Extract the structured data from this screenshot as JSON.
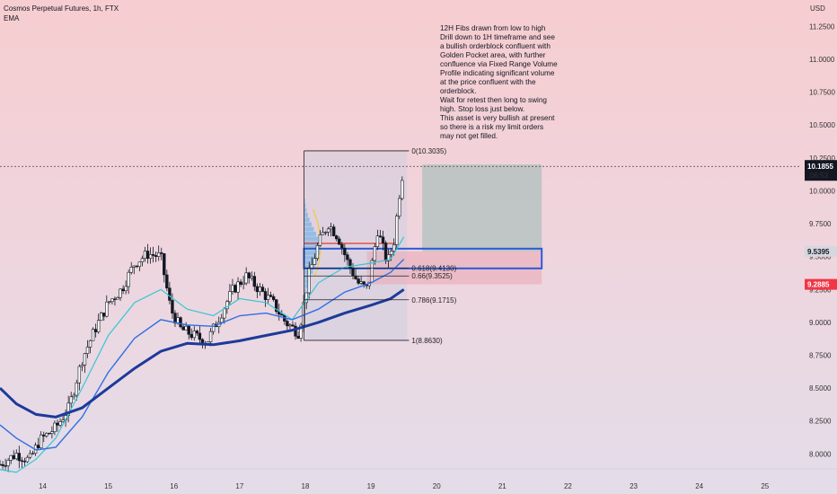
{
  "header": {
    "title": "Cosmos Perpetual Futures, 1h, FTX",
    "indicator": "EMA"
  },
  "note": "12H Fibs drawn from low to high\nDrill down to 1H timeframe and see\na bullish orderblock confluent with\nGolden Pocket area, with further\nconfluence via Fixed Range Volume\nProfile indicating significant volume\nat the price confluent with the\norderblock.\nWait for retest then long to swing\nhigh. Stop loss just below.\nThis asset is very bullish at present\nso there is a risk my limit orders\nmay not get filled.",
  "chart_data": {
    "type": "candlestick",
    "currency": "USD",
    "ylim": [
      7.9,
      11.45
    ],
    "xlim": [
      13.35,
      25.55
    ],
    "x_ticks": [
      "14",
      "15",
      "16",
      "17",
      "18",
      "19",
      "20",
      "21",
      "22",
      "23",
      "24",
      "25"
    ],
    "y_ticks": [
      "8.0000",
      "8.2500",
      "8.5000",
      "8.7500",
      "9.0000",
      "9.2500",
      "9.5000",
      "9.7500",
      "10.0000",
      "10.2500",
      "10.5000",
      "10.7500",
      "11.0000",
      "11.2500"
    ],
    "price_path": [
      {
        "x": 13.35,
        "y": 7.92
      },
      {
        "x": 13.6,
        "y": 8.0
      },
      {
        "x": 13.8,
        "y": 7.95
      },
      {
        "x": 13.95,
        "y": 8.1
      },
      {
        "x": 14.2,
        "y": 8.2
      },
      {
        "x": 14.4,
        "y": 8.35
      },
      {
        "x": 14.6,
        "y": 8.72
      },
      {
        "x": 14.8,
        "y": 8.95
      },
      {
        "x": 15.0,
        "y": 9.15
      },
      {
        "x": 15.2,
        "y": 9.25
      },
      {
        "x": 15.4,
        "y": 9.45
      },
      {
        "x": 15.6,
        "y": 9.52
      },
      {
        "x": 15.8,
        "y": 9.5
      },
      {
        "x": 15.95,
        "y": 9.1
      },
      {
        "x": 16.1,
        "y": 8.95
      },
      {
        "x": 16.3,
        "y": 8.9
      },
      {
        "x": 16.5,
        "y": 8.85
      },
      {
        "x": 16.7,
        "y": 9.05
      },
      {
        "x": 16.9,
        "y": 9.25
      },
      {
        "x": 17.1,
        "y": 9.35
      },
      {
        "x": 17.3,
        "y": 9.25
      },
      {
        "x": 17.5,
        "y": 9.15
      },
      {
        "x": 17.7,
        "y": 9.0
      },
      {
        "x": 17.9,
        "y": 8.92
      },
      {
        "x": 18.05,
        "y": 9.35
      },
      {
        "x": 18.2,
        "y": 9.6
      },
      {
        "x": 18.35,
        "y": 9.75
      },
      {
        "x": 18.5,
        "y": 9.65
      },
      {
        "x": 18.65,
        "y": 9.45
      },
      {
        "x": 18.8,
        "y": 9.3
      },
      {
        "x": 18.95,
        "y": 9.25
      },
      {
        "x": 19.1,
        "y": 9.7
      },
      {
        "x": 19.25,
        "y": 9.45
      },
      {
        "x": 19.35,
        "y": 9.62
      },
      {
        "x": 19.45,
        "y": 10.05
      },
      {
        "x": 19.5,
        "y": 10.18
      }
    ],
    "ema_dark": [
      {
        "x": 13.35,
        "y": 8.5
      },
      {
        "x": 13.6,
        "y": 8.38
      },
      {
        "x": 13.9,
        "y": 8.3
      },
      {
        "x": 14.2,
        "y": 8.28
      },
      {
        "x": 14.6,
        "y": 8.35
      },
      {
        "x": 15.0,
        "y": 8.5
      },
      {
        "x": 15.4,
        "y": 8.65
      },
      {
        "x": 15.8,
        "y": 8.78
      },
      {
        "x": 16.2,
        "y": 8.84
      },
      {
        "x": 16.6,
        "y": 8.83
      },
      {
        "x": 17.0,
        "y": 8.86
      },
      {
        "x": 17.4,
        "y": 8.9
      },
      {
        "x": 17.8,
        "y": 8.94
      },
      {
        "x": 18.2,
        "y": 9.0
      },
      {
        "x": 18.6,
        "y": 9.07
      },
      {
        "x": 19.0,
        "y": 9.13
      },
      {
        "x": 19.3,
        "y": 9.18
      },
      {
        "x": 19.5,
        "y": 9.25
      }
    ],
    "ema_blue": [
      {
        "x": 13.35,
        "y": 8.22
      },
      {
        "x": 13.6,
        "y": 8.12
      },
      {
        "x": 13.9,
        "y": 8.03
      },
      {
        "x": 14.2,
        "y": 8.05
      },
      {
        "x": 14.6,
        "y": 8.28
      },
      {
        "x": 15.0,
        "y": 8.62
      },
      {
        "x": 15.4,
        "y": 8.88
      },
      {
        "x": 15.8,
        "y": 9.02
      },
      {
        "x": 16.2,
        "y": 8.98
      },
      {
        "x": 16.6,
        "y": 8.97
      },
      {
        "x": 17.0,
        "y": 9.05
      },
      {
        "x": 17.4,
        "y": 9.07
      },
      {
        "x": 17.8,
        "y": 9.02
      },
      {
        "x": 18.2,
        "y": 9.1
      },
      {
        "x": 18.6,
        "y": 9.23
      },
      {
        "x": 19.0,
        "y": 9.3
      },
      {
        "x": 19.3,
        "y": 9.38
      },
      {
        "x": 19.5,
        "y": 9.48
      }
    ],
    "ema_cyan": [
      {
        "x": 13.35,
        "y": 7.88
      },
      {
        "x": 13.6,
        "y": 7.86
      },
      {
        "x": 13.9,
        "y": 7.96
      },
      {
        "x": 14.2,
        "y": 8.12
      },
      {
        "x": 14.6,
        "y": 8.5
      },
      {
        "x": 15.0,
        "y": 8.9
      },
      {
        "x": 15.4,
        "y": 9.15
      },
      {
        "x": 15.8,
        "y": 9.25
      },
      {
        "x": 16.2,
        "y": 9.1
      },
      {
        "x": 16.6,
        "y": 9.05
      },
      {
        "x": 17.0,
        "y": 9.18
      },
      {
        "x": 17.4,
        "y": 9.15
      },
      {
        "x": 17.8,
        "y": 9.02
      },
      {
        "x": 18.2,
        "y": 9.3
      },
      {
        "x": 18.6,
        "y": 9.42
      },
      {
        "x": 19.0,
        "y": 9.45
      },
      {
        "x": 19.3,
        "y": 9.48
      },
      {
        "x": 19.5,
        "y": 9.65
      }
    ],
    "fib_levels": [
      {
        "label": "0(10.3035)",
        "value": 10.3035
      },
      {
        "label": "0.618(9.4130)",
        "value": 9.413
      },
      {
        "label": "0.66(9.3525)",
        "value": 9.3525
      },
      {
        "label": "0.786(9.1715)",
        "value": 9.1715
      },
      {
        "label": "1(8.8630)",
        "value": 8.863
      }
    ],
    "fib_range_x": [
      17.98,
      19.55
    ],
    "fib_label_x": 19.62,
    "orderblock": {
      "x0": 17.98,
      "x1": 21.6,
      "y0": 9.41,
      "y1": 9.56
    },
    "position": {
      "x0": 19.78,
      "x1": 21.6,
      "entry": 9.5395,
      "target": 10.2,
      "stop": 9.2885
    },
    "volume_profile": {
      "x0": 17.98,
      "x1": 19.48,
      "y0": 8.86,
      "y1": 10.3
    },
    "current_price": {
      "value": 10.1855,
      "label": "10.1855",
      "countdown": "06:53"
    },
    "markers": [
      {
        "value": 9.5395,
        "label": "9.5395",
        "color": "#d6d6de",
        "text_color": "#131722"
      },
      {
        "value": 9.2885,
        "label": "9.2885",
        "color": "#f23645",
        "text_color": "#ffffff"
      }
    ],
    "colors": {
      "up": "#131722",
      "down": "#131722",
      "ema_dark": "#1d3a9a",
      "ema_blue": "#2f6fe4",
      "ema_cyan": "#35c6d6",
      "orderblock": "#2a5bd7",
      "target_zone": "#9fbdb6",
      "stop_zone": "#e9a7b5"
    }
  }
}
